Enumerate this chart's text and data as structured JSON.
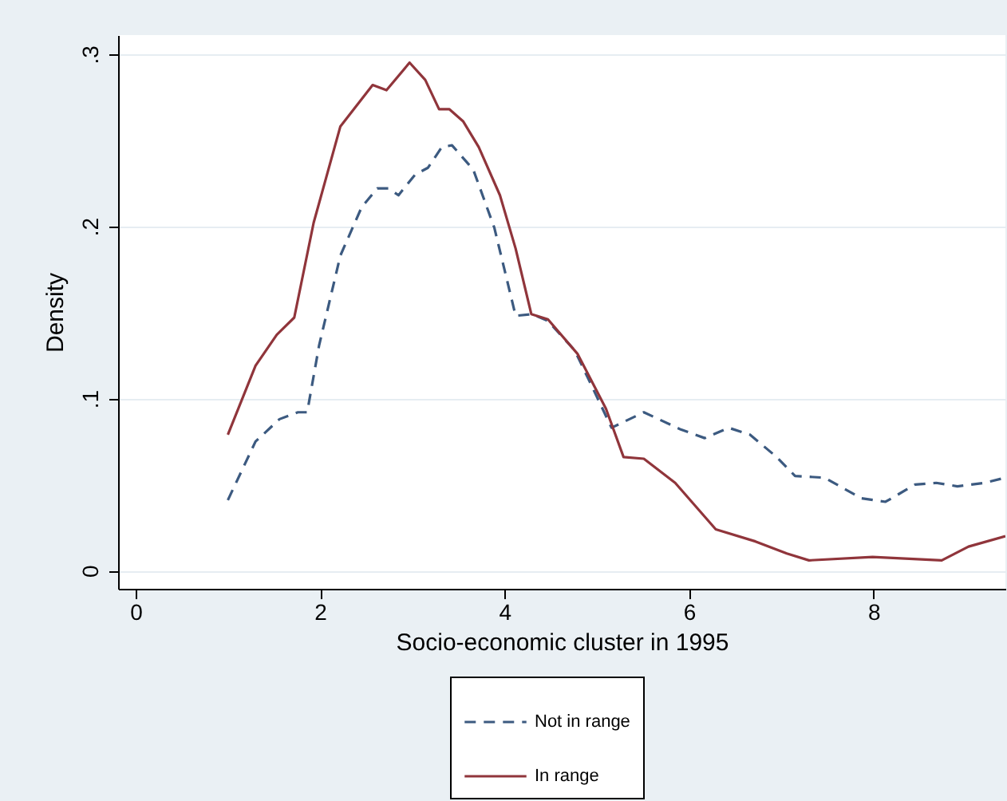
{
  "chart_data": {
    "type": "line",
    "xlabel": "Socio-economic cluster in 1995",
    "ylabel": "Density",
    "xlim": [
      -0.19,
      9.43
    ],
    "ylim": [
      -0.0105,
      0.311
    ],
    "xticks": [
      0,
      2,
      4,
      6,
      8
    ],
    "yticks": [
      {
        "value": 0,
        "label": "0"
      },
      {
        "value": 0.1,
        "label": ".1"
      },
      {
        "value": 0.2,
        "label": ".2"
      },
      {
        "value": 0.3,
        "label": ".3"
      }
    ],
    "grid": "y",
    "legend": "bottom",
    "series": [
      {
        "name": "Not in range",
        "color": "#3c5a80",
        "line_style": "dashed",
        "x": [
          1.0,
          1.3,
          1.56,
          1.76,
          1.86,
          1.99,
          2.22,
          2.45,
          2.62,
          2.74,
          2.85,
          3.03,
          3.17,
          3.32,
          3.43,
          3.66,
          3.89,
          4.12,
          4.3,
          4.47,
          4.76,
          4.93,
          5.16,
          5.51,
          5.91,
          6.17,
          6.43,
          6.66,
          6.95,
          7.15,
          7.47,
          7.87,
          8.13,
          8.45,
          8.68,
          8.91,
          9.2,
          9.43
        ],
        "values": [
          0.041,
          0.075,
          0.088,
          0.092,
          0.092,
          0.131,
          0.183,
          0.211,
          0.222,
          0.222,
          0.218,
          0.23,
          0.234,
          0.246,
          0.247,
          0.233,
          0.199,
          0.148,
          0.149,
          0.145,
          0.128,
          0.109,
          0.083,
          0.092,
          0.082,
          0.077,
          0.083,
          0.079,
          0.066,
          0.055,
          0.054,
          0.042,
          0.04,
          0.05,
          0.051,
          0.049,
          0.051,
          0.054
        ]
      },
      {
        "name": "In range",
        "color": "#90353b",
        "line_style": "solid",
        "x": [
          1.0,
          1.3,
          1.53,
          1.72,
          1.93,
          2.22,
          2.57,
          2.72,
          2.97,
          3.14,
          3.29,
          3.4,
          3.55,
          3.72,
          3.95,
          4.12,
          4.29,
          4.47,
          4.79,
          5.1,
          5.29,
          5.51,
          5.85,
          6.29,
          6.72,
          7.06,
          7.3,
          7.99,
          8.74,
          9.03,
          9.43
        ],
        "values": [
          0.079,
          0.119,
          0.137,
          0.147,
          0.202,
          0.258,
          0.282,
          0.279,
          0.295,
          0.285,
          0.268,
          0.268,
          0.261,
          0.246,
          0.218,
          0.187,
          0.149,
          0.146,
          0.126,
          0.094,
          0.066,
          0.065,
          0.051,
          0.024,
          0.017,
          0.01,
          0.006,
          0.008,
          0.006,
          0.014,
          0.02
        ]
      }
    ]
  }
}
